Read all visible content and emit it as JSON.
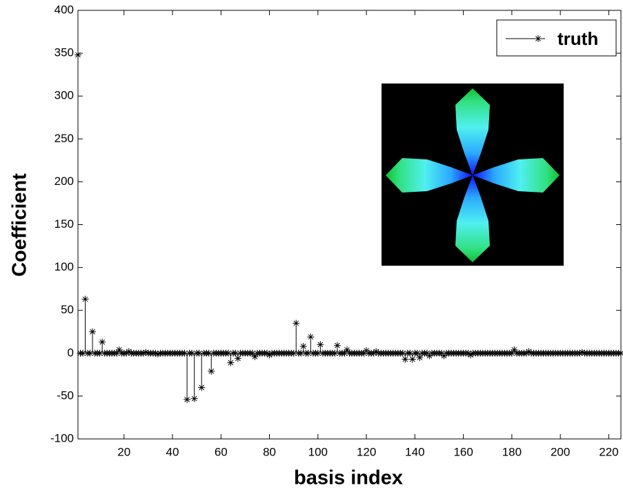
{
  "chart_data": {
    "type": "stem",
    "x_label": "basis index",
    "y_label": "Coefficient",
    "xlim": [
      1,
      225
    ],
    "ylim": [
      -100,
      400
    ],
    "xticks": [
      20,
      40,
      60,
      80,
      100,
      120,
      140,
      160,
      180,
      200,
      220
    ],
    "yticks": [
      -100,
      -50,
      0,
      50,
      100,
      150,
      200,
      250,
      300,
      350,
      400
    ],
    "legend": "top-right",
    "series": [
      {
        "name": "truth",
        "color": "#000000",
        "x": [
          1,
          2,
          3,
          4,
          5,
          6,
          7,
          8,
          9,
          10,
          11,
          12,
          13,
          14,
          15,
          16,
          17,
          18,
          19,
          20,
          21,
          22,
          23,
          24,
          25,
          26,
          27,
          28,
          29,
          30,
          31,
          32,
          33,
          34,
          35,
          36,
          37,
          38,
          39,
          40,
          41,
          42,
          43,
          44,
          45,
          46,
          47,
          48,
          49,
          50,
          51,
          52,
          53,
          54,
          55,
          56,
          57,
          58,
          59,
          60,
          61,
          62,
          63,
          64,
          65,
          66,
          67,
          68,
          69,
          70,
          71,
          72,
          73,
          74,
          75,
          76,
          77,
          78,
          79,
          80,
          81,
          82,
          83,
          84,
          85,
          86,
          87,
          88,
          89,
          90,
          91,
          92,
          93,
          94,
          95,
          96,
          97,
          98,
          99,
          100,
          101,
          102,
          103,
          104,
          105,
          106,
          107,
          108,
          109,
          110,
          111,
          112,
          113,
          114,
          115,
          116,
          117,
          118,
          119,
          120,
          121,
          122,
          123,
          124,
          125,
          126,
          127,
          128,
          129,
          130,
          131,
          132,
          133,
          134,
          135,
          136,
          137,
          138,
          139,
          140,
          141,
          142,
          143,
          144,
          145,
          146,
          147,
          148,
          149,
          150,
          151,
          152,
          153,
          154,
          155,
          156,
          157,
          158,
          159,
          160,
          161,
          162,
          163,
          164,
          165,
          166,
          167,
          168,
          169,
          170,
          171,
          172,
          173,
          174,
          175,
          176,
          177,
          178,
          179,
          180,
          181,
          182,
          183,
          184,
          185,
          186,
          187,
          188,
          189,
          190,
          191,
          192,
          193,
          194,
          195,
          196,
          197,
          198,
          199,
          200,
          201,
          202,
          203,
          204,
          205,
          206,
          207,
          208,
          209,
          210,
          211,
          212,
          213,
          214,
          215,
          216,
          217,
          218,
          219,
          220,
          221,
          222,
          223,
          224,
          225
        ],
        "values": [
          348,
          0,
          0,
          63,
          0,
          0,
          25,
          0,
          0,
          0,
          13,
          0,
          0,
          0,
          0,
          0,
          0,
          4,
          0,
          0,
          0,
          2,
          0,
          0,
          0,
          0,
          0,
          0,
          1,
          0,
          0,
          0,
          0,
          -1,
          0,
          0,
          0,
          0,
          0,
          0,
          0,
          0,
          0,
          0,
          0,
          -54,
          0,
          0,
          -53,
          0,
          0,
          -40,
          0,
          0,
          0,
          -21,
          0,
          0,
          0,
          0,
          0,
          0,
          0,
          -11,
          0,
          0,
          -6,
          0,
          0,
          0,
          0,
          0,
          0,
          -4,
          0,
          0,
          0,
          0,
          0,
          -2,
          0,
          0,
          0,
          0,
          0,
          0,
          0,
          0,
          0,
          0,
          35,
          0,
          0,
          8,
          0,
          0,
          19,
          0,
          0,
          0,
          10,
          0,
          0,
          0,
          0,
          0,
          0,
          9,
          0,
          0,
          0,
          4,
          0,
          0,
          0,
          0,
          0,
          0,
          0,
          3,
          0,
          0,
          0,
          2,
          0,
          0,
          0,
          0,
          0,
          0,
          0,
          0,
          0,
          0,
          0,
          -7,
          0,
          0,
          -7,
          0,
          0,
          -5,
          0,
          0,
          0,
          -3,
          0,
          0,
          0,
          0,
          0,
          -3,
          0,
          0,
          0,
          0,
          0,
          0,
          0,
          0,
          0,
          0,
          -2,
          0,
          0,
          0,
          0,
          0,
          0,
          0,
          0,
          0,
          0,
          0,
          0,
          0,
          0,
          0,
          0,
          0,
          4,
          0,
          0,
          0,
          0,
          0,
          2,
          0,
          0,
          0,
          0,
          0,
          0,
          0,
          0,
          0,
          0,
          0,
          0,
          0,
          0,
          0,
          0,
          0,
          0,
          0,
          0,
          0,
          1,
          0,
          0,
          0,
          0,
          0,
          0,
          0,
          0,
          0,
          0,
          0,
          0,
          0,
          0,
          0,
          0
        ]
      }
    ]
  }
}
